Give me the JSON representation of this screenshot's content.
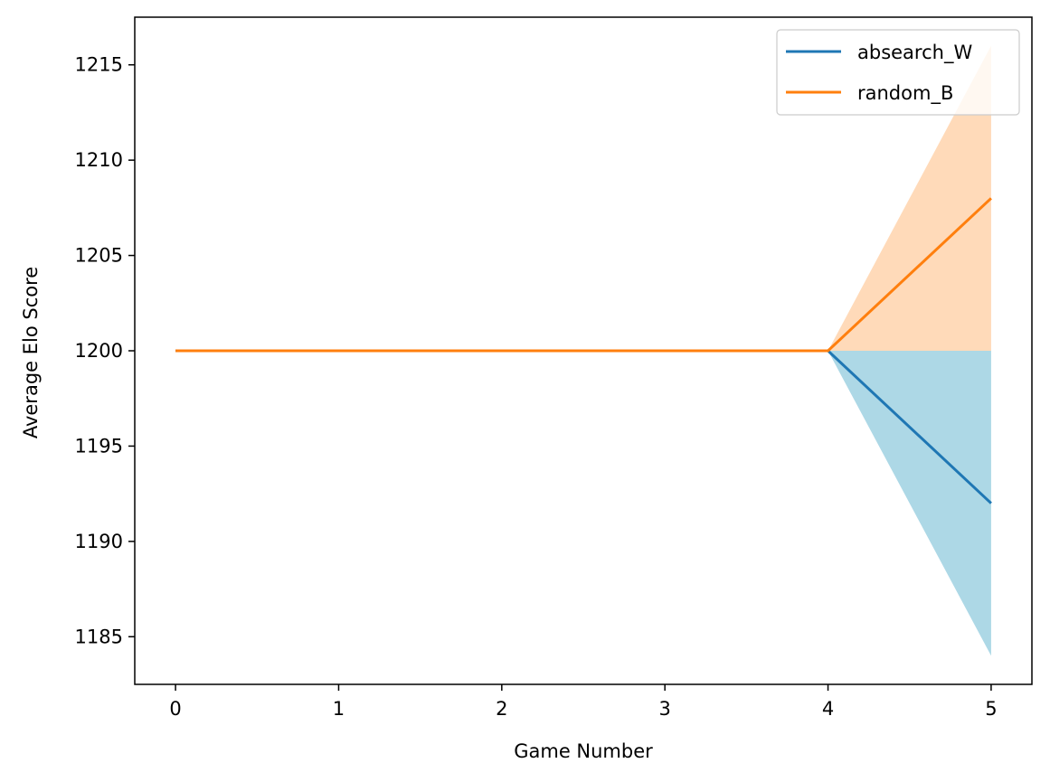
{
  "chart_data": {
    "type": "line",
    "title": "",
    "xlabel": "Game Number",
    "ylabel": "Average Elo Score",
    "x": [
      0,
      1,
      2,
      3,
      4,
      5
    ],
    "xlim": [
      -0.25,
      5.25
    ],
    "ylim": [
      1182.5,
      1217.5
    ],
    "xticks": [
      0,
      1,
      2,
      3,
      4,
      5
    ],
    "yticks": [
      1185,
      1190,
      1195,
      1200,
      1205,
      1210,
      1215
    ],
    "grid": false,
    "legend_position": "upper right",
    "series": [
      {
        "name": "absearch_W",
        "color": "#1f77b4",
        "band_color": "#add8e6",
        "values": [
          1200,
          1200,
          1200,
          1200,
          1200,
          1192
        ],
        "band_lower": [
          1200,
          1200,
          1200,
          1200,
          1200,
          1184
        ],
        "band_upper": [
          1200,
          1200,
          1200,
          1200,
          1200,
          1200
        ]
      },
      {
        "name": "random_B",
        "color": "#ff7f0e",
        "band_color": "#ffdab9",
        "values": [
          1200,
          1200,
          1200,
          1200,
          1200,
          1208
        ],
        "band_lower": [
          1200,
          1200,
          1200,
          1200,
          1200,
          1200
        ],
        "band_upper": [
          1200,
          1200,
          1200,
          1200,
          1200,
          1216
        ]
      }
    ]
  }
}
